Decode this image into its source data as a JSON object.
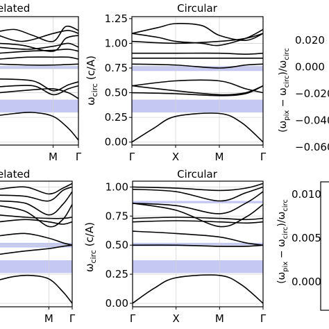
{
  "chart_data": [
    {
      "type": "line",
      "title": "elated",
      "xlabel": "",
      "ylabel": "",
      "x_ticks": [
        {
          "label": "M",
          "x": 2
        },
        {
          "label": "Γ",
          "x": 3
        }
      ],
      "xlim": [
        -0.15,
        3
      ],
      "ylim": [
        -0.03,
        1.27
      ],
      "grid": true,
      "gaps": [
        [
          0.74,
          0.77
        ],
        [
          0.3,
          0.43
        ]
      ],
      "series": [
        {
          "x": [
            -0.15,
            0.5,
            1.2,
            2,
            2.5,
            3
          ],
          "y": [
            1.12,
            1.14,
            1.08,
            1.02,
            1.17,
            1.13
          ]
        },
        {
          "x": [
            -0.15,
            0.8,
            2,
            2.6,
            3
          ],
          "y": [
            1.08,
            1.02,
            1.1,
            1.13,
            1.1
          ]
        },
        {
          "x": [
            -0.15,
            0.8,
            2,
            2.5,
            3
          ],
          "y": [
            1.0,
            0.98,
            0.92,
            1.05,
            1.08
          ]
        },
        {
          "x": [
            -0.15,
            1.0,
            2,
            2.6,
            3
          ],
          "y": [
            0.96,
            0.94,
            0.97,
            1.0,
            0.96
          ]
        },
        {
          "x": [
            -0.15,
            1.0,
            2,
            2.6,
            3
          ],
          "y": [
            0.9,
            0.92,
            0.93,
            0.94,
            0.92
          ]
        },
        {
          "x": [
            -0.15,
            1.0,
            2,
            2.6,
            3
          ],
          "y": [
            0.84,
            0.86,
            0.86,
            0.86,
            0.84
          ]
        },
        {
          "x": [
            -0.15,
            1.0,
            2,
            3
          ],
          "y": [
            0.79,
            0.78,
            0.78,
            0.79
          ]
        },
        {
          "x": [
            -0.15,
            1.2,
            2,
            2.6,
            3
          ],
          "y": [
            0.64,
            0.62,
            0.52,
            0.58,
            0.61
          ]
        },
        {
          "x": [
            -0.15,
            1.2,
            2,
            2.6,
            3
          ],
          "y": [
            0.56,
            0.57,
            0.48,
            0.54,
            0.57
          ]
        },
        {
          "x": [
            -0.15,
            1.2,
            2,
            2.6,
            3
          ],
          "y": [
            0.5,
            0.53,
            0.54,
            0.5,
            0.44
          ]
        },
        {
          "x": [
            -0.15,
            0.5,
            1.2,
            2,
            2.6,
            3
          ],
          "y": [
            0.27,
            0.29,
            0.3,
            0.26,
            0.14,
            0.02
          ]
        }
      ]
    },
    {
      "type": "line",
      "title": "Circular",
      "xlabel": "",
      "ylabel": "ω_circ (c/A)",
      "x_ticks": [
        {
          "label": "Γ",
          "x": 0
        },
        {
          "label": "X",
          "x": 1
        },
        {
          "label": "M",
          "x": 2
        },
        {
          "label": "Γ",
          "x": 3
        }
      ],
      "y_ticks": [
        "0.00",
        "0.25",
        "0.50",
        "0.75",
        "1.00",
        "1.25"
      ],
      "xlim": [
        0,
        3
      ],
      "ylim": [
        -0.03,
        1.27
      ],
      "grid": true,
      "gaps": [
        [
          0.72,
          0.77
        ],
        [
          0.3,
          0.43
        ]
      ],
      "series": [
        {
          "x": [
            0,
            0.6,
            1,
            1.6,
            2,
            2.6,
            3
          ],
          "y": [
            1.1,
            1.16,
            1.2,
            1.18,
            1.08,
            1.03,
            1.1
          ]
        },
        {
          "x": [
            0,
            0.6,
            1,
            1.6,
            2,
            2.6,
            3
          ],
          "y": [
            1.1,
            1.06,
            1.02,
            1.0,
            0.98,
            1.05,
            1.14
          ]
        },
        {
          "x": [
            0,
            1,
            2,
            2.6,
            3
          ],
          "y": [
            1.02,
            1.0,
            1.02,
            1.05,
            1.1
          ]
        },
        {
          "x": [
            0,
            1,
            2,
            2.6,
            3
          ],
          "y": [
            0.9,
            0.9,
            0.9,
            0.89,
            0.9
          ]
        },
        {
          "x": [
            0,
            1,
            2,
            3
          ],
          "y": [
            0.85,
            0.85,
            0.85,
            0.85
          ]
        },
        {
          "x": [
            0,
            1,
            2,
            2.6,
            3
          ],
          "y": [
            0.79,
            0.78,
            0.75,
            0.78,
            0.79
          ]
        },
        {
          "x": [
            0,
            1,
            2,
            2.6,
            3
          ],
          "y": [
            0.57,
            0.62,
            0.62,
            0.54,
            0.5
          ]
        },
        {
          "x": [
            0,
            1,
            2,
            2.6,
            3
          ],
          "y": [
            0.57,
            0.52,
            0.48,
            0.5,
            0.57
          ]
        },
        {
          "x": [
            0,
            1,
            2,
            2.6,
            3
          ],
          "y": [
            0.5,
            0.49,
            0.47,
            0.49,
            0.57
          ]
        },
        {
          "x": [
            0,
            0.5,
            1,
            2,
            2.5,
            3
          ],
          "y": [
            0.0,
            0.14,
            0.26,
            0.29,
            0.2,
            0.0
          ]
        }
      ]
    },
    {
      "type": "heatmap",
      "ylabel": "(ω_pix − ω_circ)/ω_circ",
      "y_ticks": [
        "0.020",
        "0.000",
        "−0.020",
        "−0.040",
        "−0.060"
      ]
    },
    {
      "type": "line",
      "title": "elated",
      "xlabel": "",
      "ylabel": "",
      "x_ticks": [
        {
          "label": "M",
          "x": 2
        },
        {
          "label": "Γ",
          "x": 3
        }
      ],
      "xlim": [
        -0.15,
        3
      ],
      "ylim": [
        -0.03,
        1.05
      ],
      "grid": true,
      "gaps": [
        [
          0.48,
          0.52
        ],
        [
          0.26,
          0.37
        ]
      ],
      "series": [
        {
          "x": [
            -0.15,
            1.0,
            2,
            2.6,
            3
          ],
          "y": [
            0.98,
            1.0,
            0.94,
            0.99,
            1.03
          ]
        },
        {
          "x": [
            -0.15,
            1.0,
            2,
            2.6,
            3
          ],
          "y": [
            0.93,
            0.92,
            0.88,
            0.97,
            1.0
          ]
        },
        {
          "x": [
            -0.15,
            1.0,
            2,
            2.6,
            3
          ],
          "y": [
            0.88,
            0.86,
            0.76,
            0.85,
            0.96
          ]
        },
        {
          "x": [
            -0.15,
            1.0,
            2,
            2.6,
            3
          ],
          "y": [
            0.84,
            0.79,
            0.66,
            0.72,
            0.85
          ]
        },
        {
          "x": [
            -0.15,
            1.0,
            2,
            2.6,
            3
          ],
          "y": [
            0.76,
            0.74,
            0.73,
            0.73,
            0.74
          ]
        },
        {
          "x": [
            -0.15,
            1.0,
            2,
            2.6,
            3
          ],
          "y": [
            0.7,
            0.72,
            0.7,
            0.68,
            0.7
          ]
        },
        {
          "x": [
            -0.15,
            1.0,
            2,
            2.6,
            3
          ],
          "y": [
            0.58,
            0.6,
            0.56,
            0.52,
            0.5
          ]
        },
        {
          "x": [
            -0.15,
            1.0,
            2,
            2.6,
            3
          ],
          "y": [
            0.42,
            0.45,
            0.47,
            0.49,
            0.5
          ]
        },
        {
          "x": [
            -0.15,
            0.5,
            1.2,
            2,
            2.6,
            3
          ],
          "y": [
            0.2,
            0.23,
            0.24,
            0.21,
            0.1,
            0.0
          ]
        }
      ]
    },
    {
      "type": "line",
      "title": "Circular",
      "xlabel": "",
      "ylabel": "ω_circ (c/A)",
      "x_ticks": [
        {
          "label": "Γ",
          "x": 0
        },
        {
          "label": "X",
          "x": 1
        },
        {
          "label": "M",
          "x": 2
        },
        {
          "label": "Γ",
          "x": 3
        }
      ],
      "y_ticks": [
        "0.00",
        "0.25",
        "0.50",
        "0.75",
        "1.00"
      ],
      "xlim": [
        0,
        3
      ],
      "ylim": [
        -0.03,
        1.05
      ],
      "grid": true,
      "gaps": [
        [
          0.86,
          0.88
        ],
        [
          0.49,
          0.52
        ],
        [
          0.26,
          0.37
        ]
      ],
      "series": [
        {
          "x": [
            0,
            1,
            2,
            2.6,
            3
          ],
          "y": [
            1.0,
            0.99,
            0.97,
            0.99,
            1.03
          ]
        },
        {
          "x": [
            0,
            1,
            2,
            2.6,
            3
          ],
          "y": [
            0.98,
            0.96,
            0.88,
            0.95,
            1.0
          ]
        },
        {
          "x": [
            0,
            1,
            2,
            2.6,
            3
          ],
          "y": [
            0.86,
            0.84,
            0.77,
            0.86,
            0.96
          ]
        },
        {
          "x": [
            0,
            1,
            2,
            2.6,
            3
          ],
          "y": [
            0.86,
            0.8,
            0.66,
            0.74,
            0.85
          ]
        },
        {
          "x": [
            0,
            1,
            2,
            2.6,
            3
          ],
          "y": [
            0.73,
            0.74,
            0.73,
            0.72,
            0.73
          ]
        },
        {
          "x": [
            0,
            1,
            2,
            2.6,
            3
          ],
          "y": [
            0.7,
            0.71,
            0.7,
            0.69,
            0.7
          ]
        },
        {
          "x": [
            0,
            1,
            2,
            2.6,
            3
          ],
          "y": [
            0.62,
            0.6,
            0.57,
            0.52,
            0.5
          ]
        },
        {
          "x": [
            0,
            1,
            2,
            2.6,
            3
          ],
          "y": [
            0.5,
            0.5,
            0.49,
            0.49,
            0.5
          ]
        },
        {
          "x": [
            0,
            0.5,
            1,
            2,
            2.5,
            3
          ],
          "y": [
            0.0,
            0.13,
            0.22,
            0.24,
            0.16,
            0.0
          ]
        }
      ]
    },
    {
      "type": "heatmap",
      "ylabel": "(ω_pix − ω_circ)/ω_circ",
      "y_ticks": [
        "0.010",
        "0.005",
        "0.000"
      ]
    }
  ]
}
